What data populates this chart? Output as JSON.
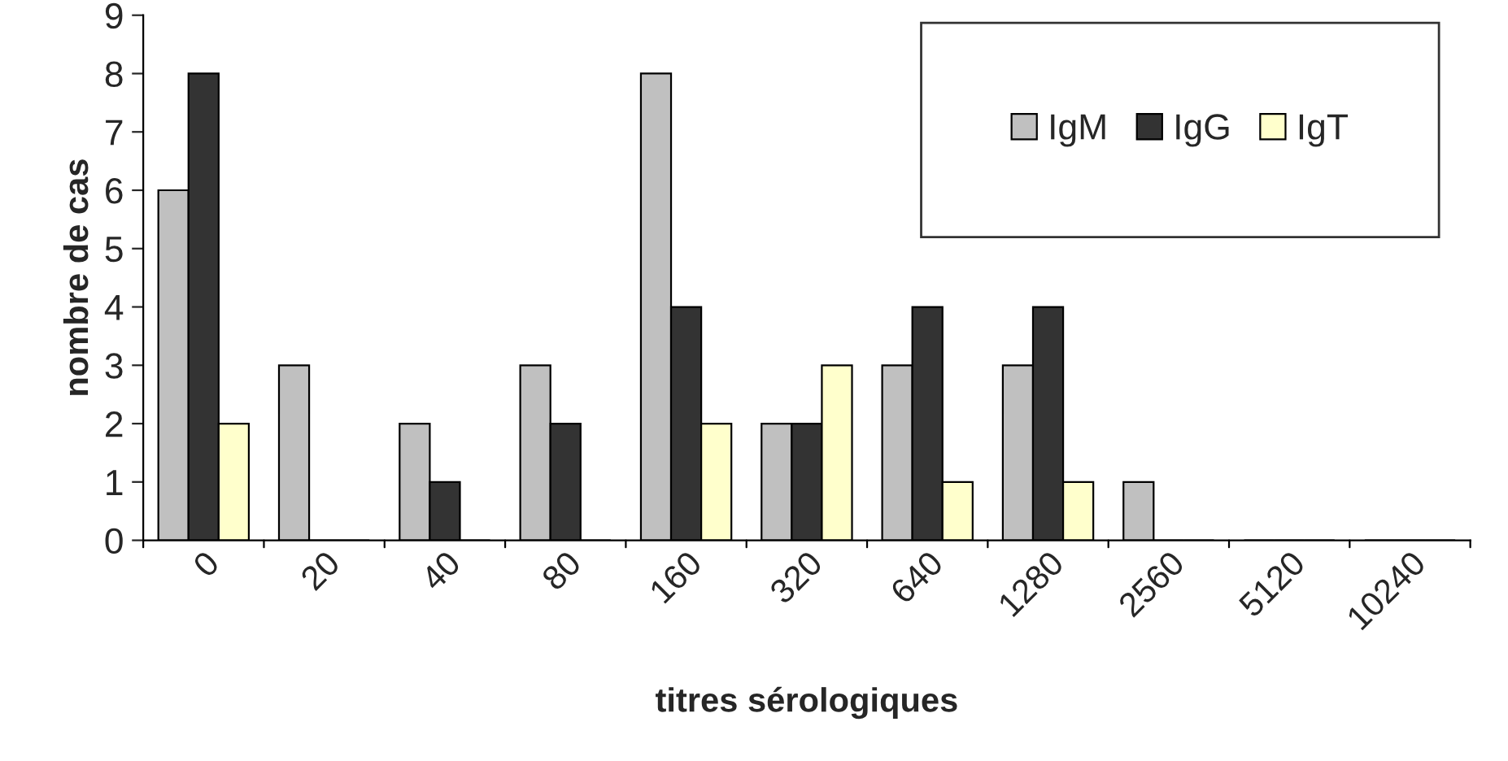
{
  "chart_data": {
    "type": "bar",
    "xlabel": "titres sérologiques",
    "ylabel": "nombre de cas",
    "categories": [
      "0",
      "20",
      "40",
      "80",
      "160",
      "320",
      "640",
      "1280",
      "2560",
      "5120",
      "10240"
    ],
    "series": [
      {
        "name": "IgM",
        "color": "#c0c0c0",
        "values": [
          6,
          3,
          2,
          3,
          8,
          2,
          3,
          3,
          1,
          0,
          0
        ]
      },
      {
        "name": "IgG",
        "color": "#333333",
        "values": [
          8,
          0,
          1,
          2,
          4,
          2,
          4,
          4,
          0,
          0,
          0
        ]
      },
      {
        "name": "IgT",
        "color": "#ffffcc",
        "values": [
          2,
          0,
          0,
          0,
          2,
          3,
          1,
          1,
          0,
          0,
          0
        ]
      }
    ],
    "ylim": [
      0,
      9
    ],
    "yticks": [
      0,
      1,
      2,
      3,
      4,
      5,
      6,
      7,
      8,
      9
    ],
    "grid": false,
    "legend": "top right"
  }
}
